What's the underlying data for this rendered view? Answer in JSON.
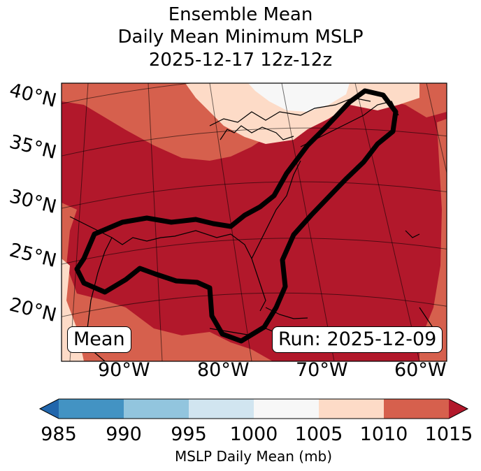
{
  "title": {
    "line1": "Ensemble Mean",
    "line2": "Daily Mean Minimum MSLP",
    "line3": "2025-12-17 12z-12z"
  },
  "map": {
    "lat_labels": [
      "40°N",
      "35°N",
      "30°N",
      "25°N",
      "20°N"
    ],
    "lon_labels": [
      "90°W",
      "80°W",
      "70°W",
      "60°W"
    ],
    "mean_box": "Mean",
    "run_box": "Run: 2025-12-09",
    "fill_colors": {
      "lt_1000": "#f7f7f7",
      "1005_1010": "#fddbc7",
      "1010_1015": "#d6604d",
      "gt_1015": "#b2182b"
    },
    "contour_color": "#000000"
  },
  "colorbar": {
    "label": "MSLP Daily Mean (mb)",
    "ticks": [
      "985",
      "990",
      "995",
      "1000",
      "1005",
      "1010",
      "1015"
    ],
    "colors": {
      "extend_low": "#2166ac",
      "c985_990": "#4393c3",
      "c990_995": "#92c5de",
      "c995_1000": "#d1e5f0",
      "c1000_1005": "#f7f7f7",
      "c1005_1010": "#fddbc7",
      "c1010_1015": "#d6604d",
      "extend_high": "#b2182b"
    }
  }
}
